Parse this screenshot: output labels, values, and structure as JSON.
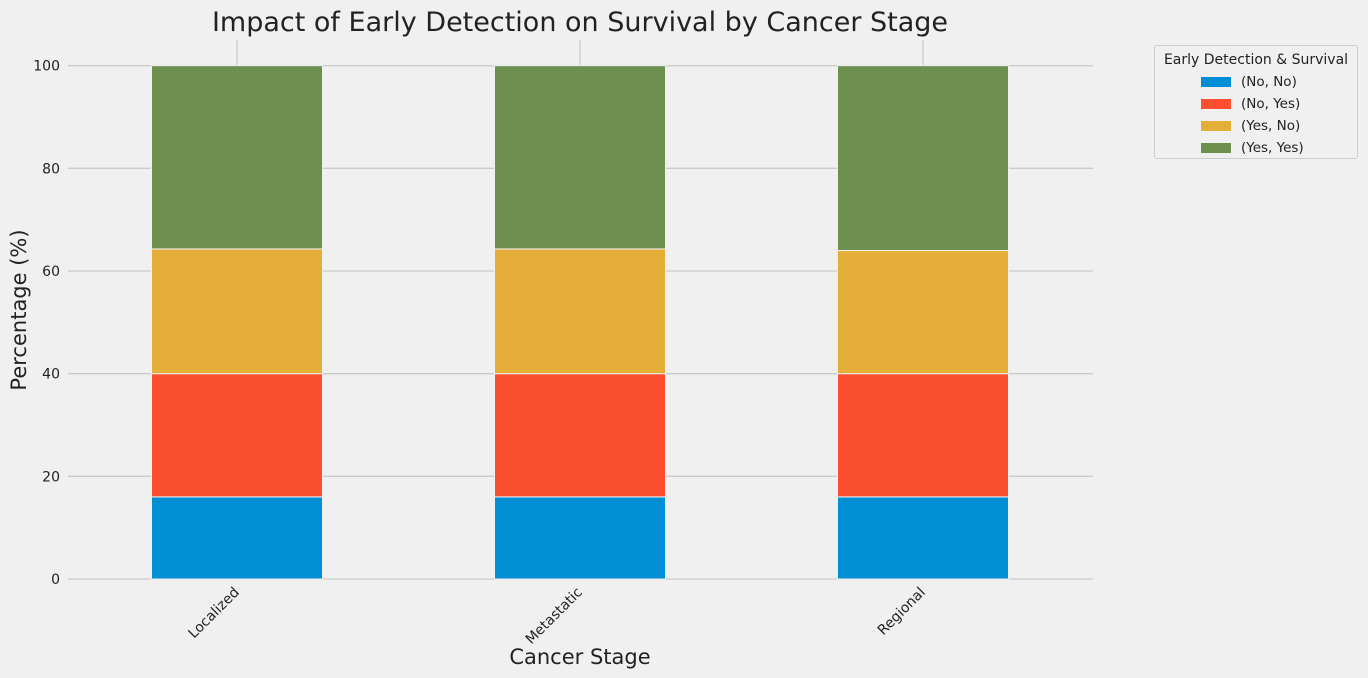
{
  "chart_data": {
    "type": "bar",
    "stacked": true,
    "title": "Impact of Early Detection on Survival by Cancer Stage",
    "xlabel": "Cancer Stage",
    "ylabel": "Percentage (%)",
    "categories": [
      "Localized",
      "Metastatic",
      "Regional"
    ],
    "ylim": [
      0,
      105
    ],
    "yticks": [
      0,
      20,
      40,
      60,
      80,
      100
    ],
    "grid": true,
    "legend": {
      "title": "Early Detection & Survival",
      "placement": "outside-top-right"
    },
    "series": [
      {
        "name": "(No, No)",
        "color": "#008fd5",
        "values": [
          16,
          16,
          16
        ]
      },
      {
        "name": "(No, Yes)",
        "color": "#fc4f30",
        "values": [
          24,
          24,
          24
        ]
      },
      {
        "name": "(Yes, No)",
        "color": "#e5ae38",
        "values": [
          24.3,
          24.3,
          24
        ]
      },
      {
        "name": "(Yes, Yes)",
        "color": "#6d904f",
        "values": [
          35.7,
          35.7,
          36
        ]
      }
    ]
  }
}
